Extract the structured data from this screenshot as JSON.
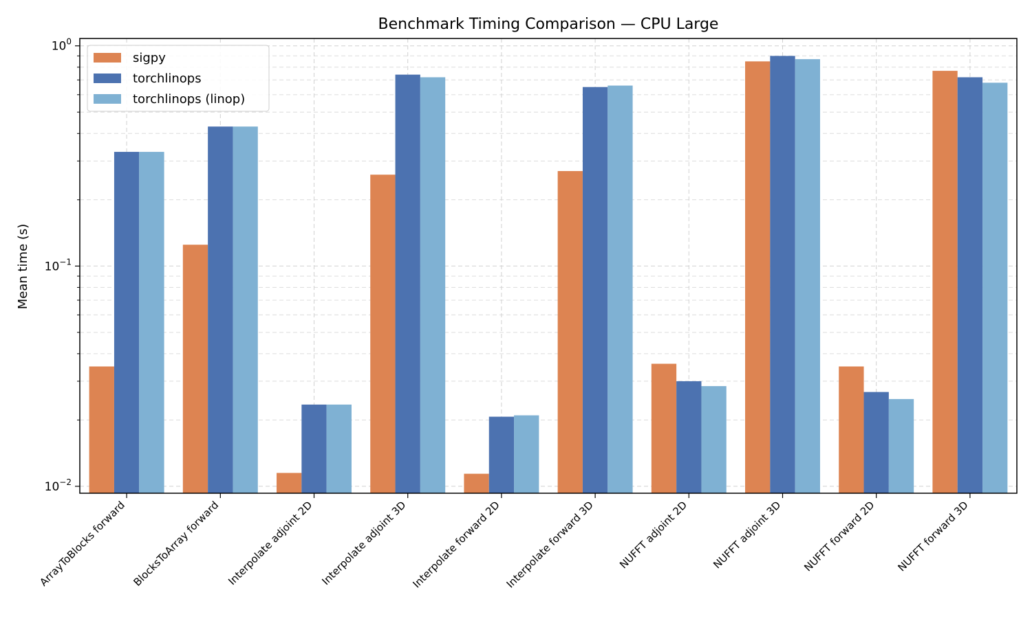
{
  "chart_data": {
    "type": "bar",
    "title": "Benchmark Timing Comparison — CPU Large",
    "xlabel": "",
    "ylabel": "Mean time (s)",
    "yscale": "log",
    "ylim": [
      0.0093,
      1.08
    ],
    "yticks": [
      {
        "value": 0.01,
        "base": "10",
        "exp": "−2"
      },
      {
        "value": 0.1,
        "base": "10",
        "exp": "−1"
      },
      {
        "value": 1,
        "base": "10",
        "exp": "0"
      }
    ],
    "grid": true,
    "legend_position": "top-left",
    "categories": [
      "ArrayToBlocks forward",
      "BlocksToArray forward",
      "Interpolate adjoint 2D",
      "Interpolate adjoint 3D",
      "Interpolate forward 2D",
      "Interpolate forward 3D",
      "NUFFT adjoint 2D",
      "NUFFT adjoint 3D",
      "NUFFT forward 2D",
      "NUFFT forward 3D"
    ],
    "series": [
      {
        "name": "sigpy",
        "color": "#dd8452",
        "values": [
          0.035,
          0.125,
          0.0115,
          0.26,
          0.0114,
          0.27,
          0.036,
          0.85,
          0.035,
          0.77
        ]
      },
      {
        "name": "torchlinops",
        "color": "#4c72b0",
        "values": [
          0.33,
          0.43,
          0.0235,
          0.74,
          0.0207,
          0.65,
          0.03,
          0.9,
          0.0268,
          0.72
        ]
      },
      {
        "name": "torchlinops (linop)",
        "color": "#7fb1d3",
        "values": [
          0.33,
          0.43,
          0.0235,
          0.72,
          0.021,
          0.66,
          0.0285,
          0.87,
          0.0249,
          0.68
        ]
      }
    ]
  }
}
